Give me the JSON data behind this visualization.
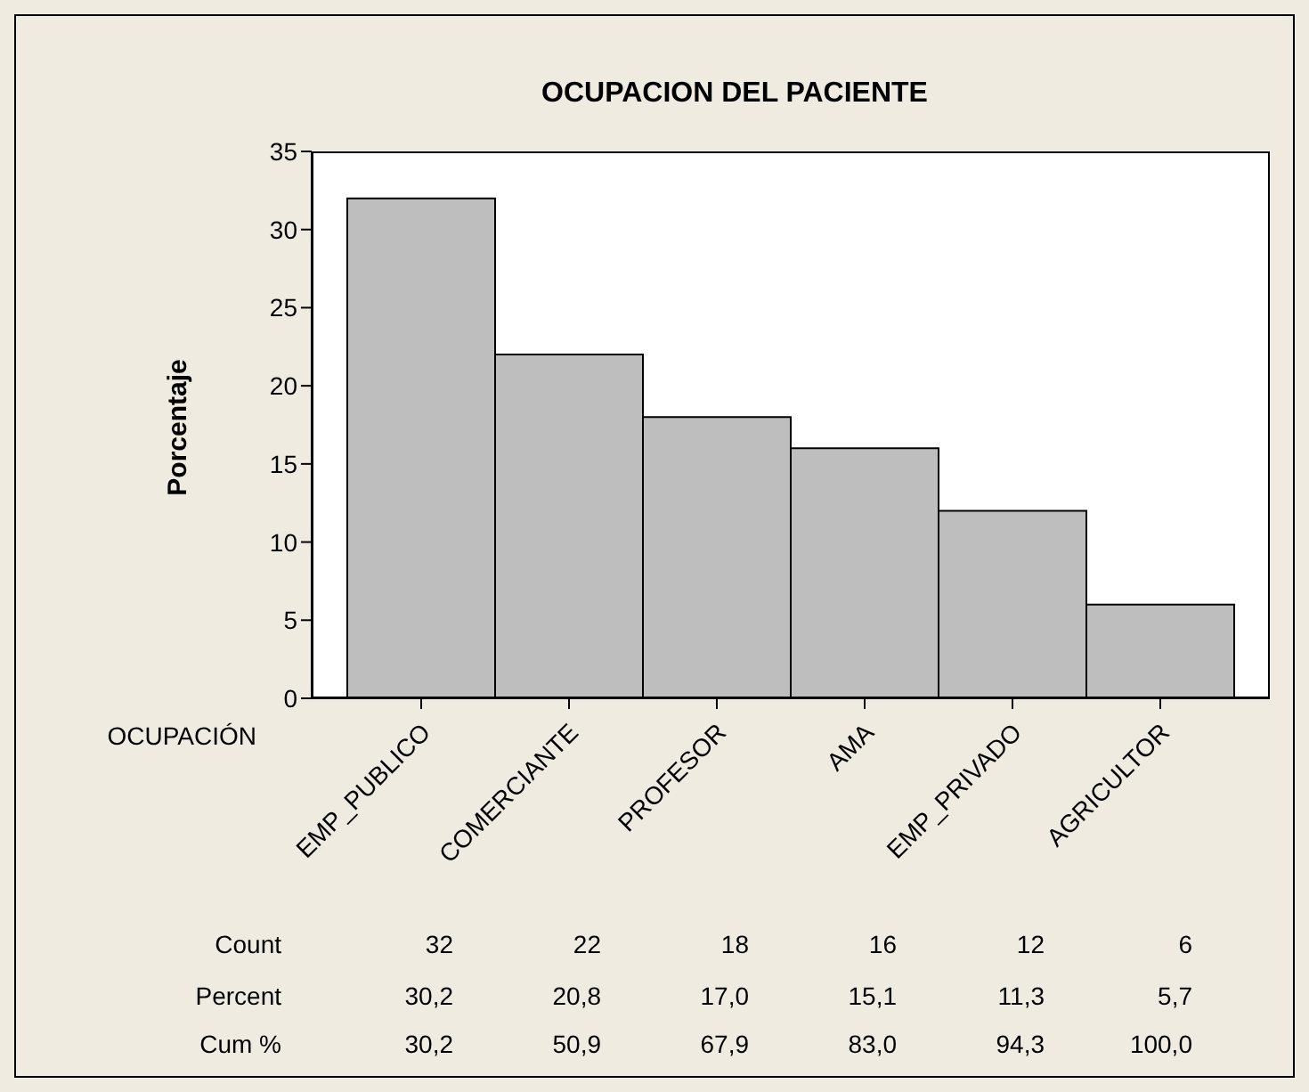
{
  "chart_data": {
    "type": "bar",
    "title": "OCUPACION DEL PACIENTE",
    "xlabel": "OCUPACIÓN",
    "ylabel": "Porcentaje",
    "categories": [
      "EMP_PUBLICO",
      "COMERCIANTE",
      "PROFESOR",
      "AMA",
      "EMP_PRIVADO",
      "AGRICULTOR"
    ],
    "values": [
      32,
      22,
      18,
      16,
      12,
      6
    ],
    "color": "#bebebe",
    "ylim": [
      0,
      35
    ],
    "yticks": [
      0,
      5,
      10,
      15,
      20,
      25,
      30,
      35
    ],
    "data_labels": true,
    "annotations": [
      "Count",
      "Percent",
      "Cum %",
      "30,2",
      "20,8",
      "17,0",
      "15,1",
      "11,3",
      "5,7",
      "30,2",
      "50,9",
      "67,9",
      "83,0",
      "94,3",
      "100,0"
    ]
  }
}
